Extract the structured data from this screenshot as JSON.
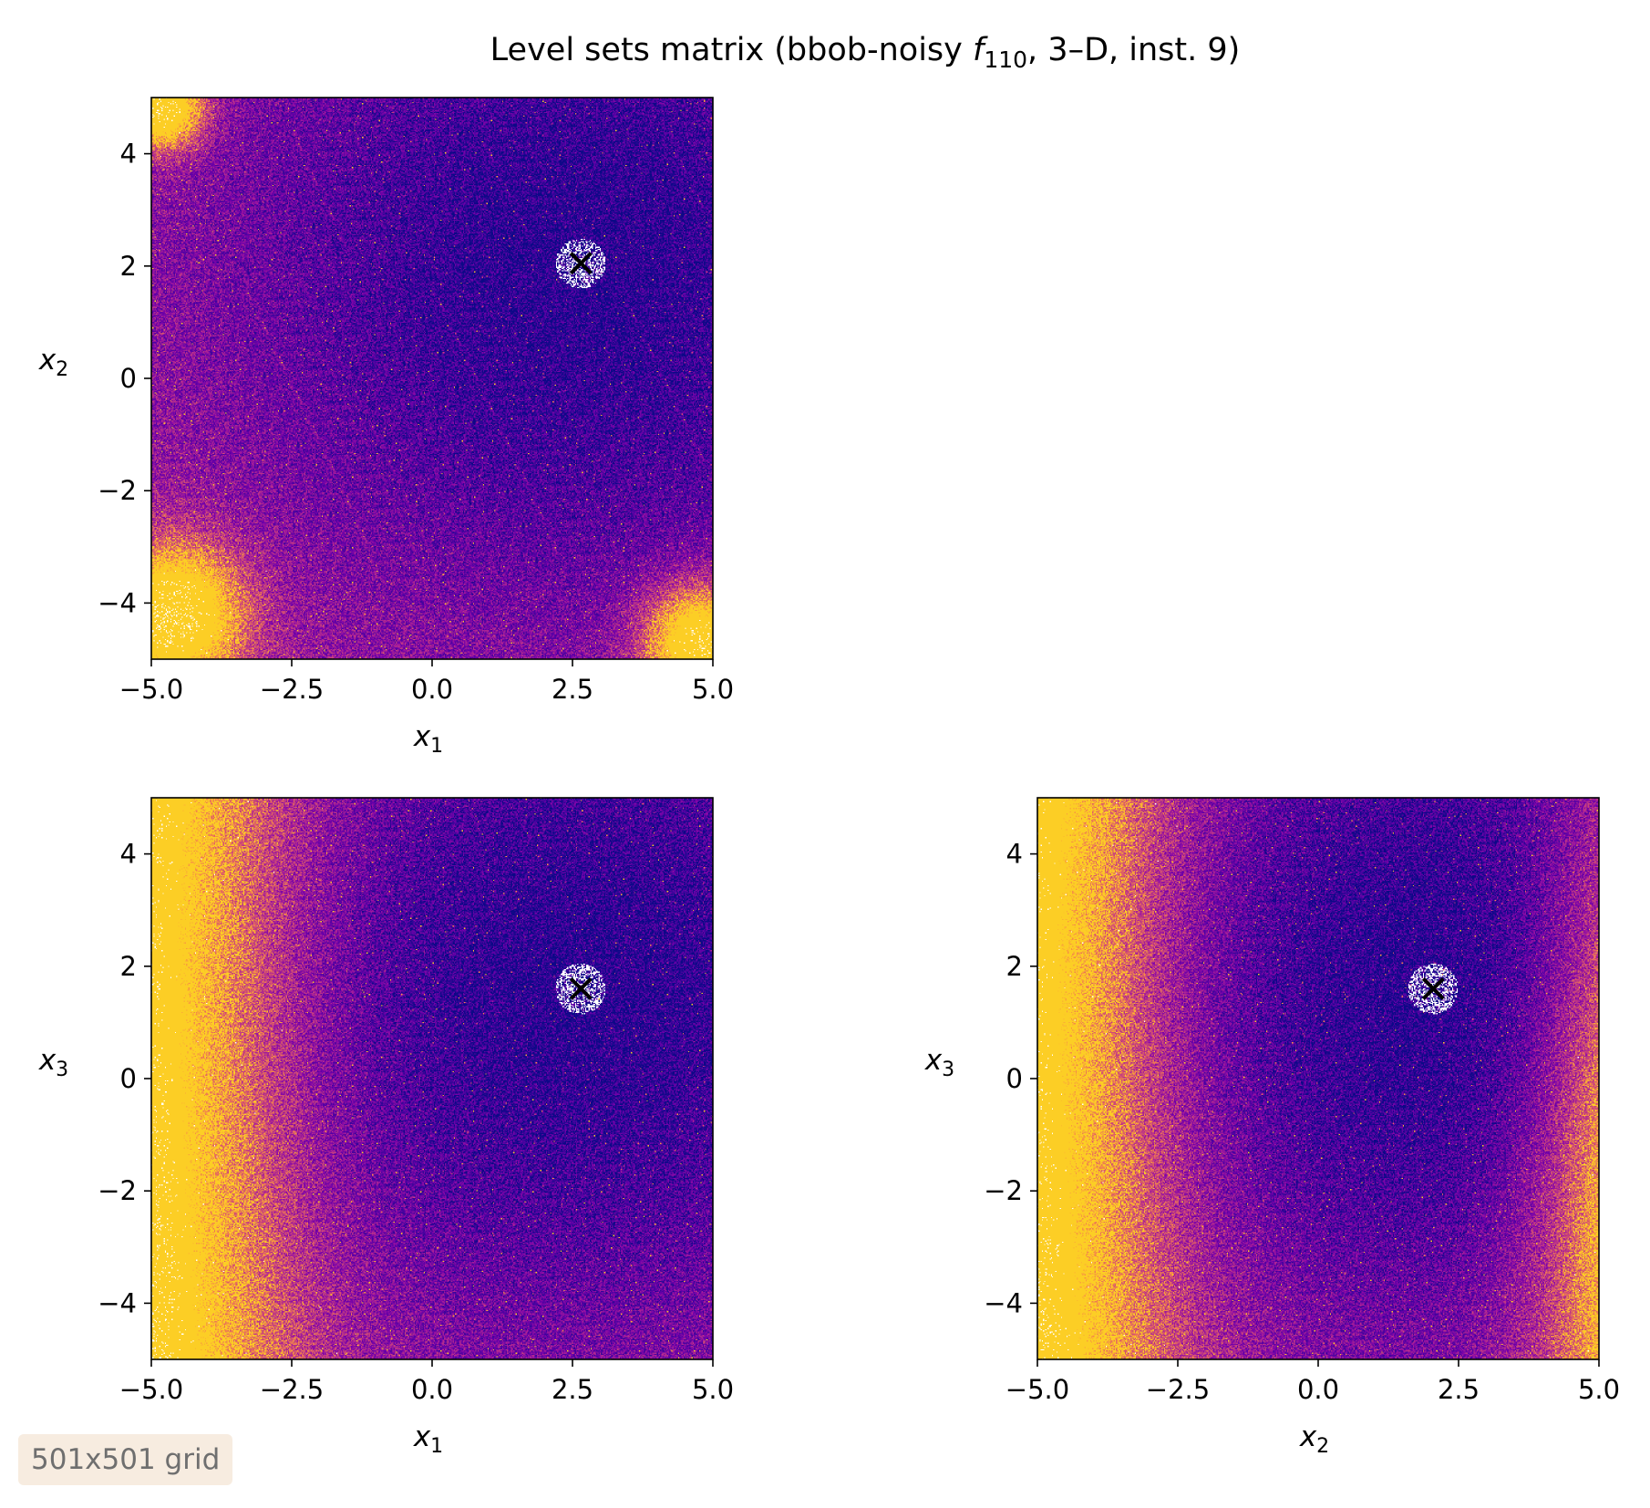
{
  "figure": {
    "title": "Level sets matrix (bbob-noisy f110, 3–D, inst. 9)",
    "title_parts": {
      "prefix": "Level sets matrix (bbob-noisy ",
      "func_letter": "f",
      "func_sub": "110",
      "suffix": ", 3–D, inst. 9)"
    },
    "badge": "501x501 grid",
    "colors": {
      "low": "#0d0887",
      "mid": "#7e03a8",
      "high": "#cc4778",
      "top": "#fcce25",
      "nan": "#ffffff",
      "marker": "#000000"
    }
  },
  "chart_data": [
    {
      "type": "heatmap",
      "name": "x1-x2",
      "x_var": "x",
      "x_sub": "1",
      "y_var": "x",
      "y_sub": "2",
      "xlim": [
        -5,
        5
      ],
      "ylim": [
        -5,
        5
      ],
      "xticks": [
        -5.0,
        -2.5,
        0.0,
        2.5,
        5.0
      ],
      "xtick_labels": [
        "−5.0",
        "−2.5",
        "0.0",
        "2.5",
        "5.0"
      ],
      "yticks": [
        -4,
        -2,
        0,
        2,
        4
      ],
      "ytick_labels": [
        "−4",
        "−2",
        "0",
        "2",
        "4"
      ],
      "optimum": [
        2.65,
        2.05
      ],
      "grid_resolution": [
        501,
        501
      ],
      "colormap": "plasma"
    },
    {
      "type": "heatmap",
      "name": "x1-x3",
      "x_var": "x",
      "x_sub": "1",
      "y_var": "x",
      "y_sub": "3",
      "xlim": [
        -5,
        5
      ],
      "ylim": [
        -5,
        5
      ],
      "xticks": [
        -5.0,
        -2.5,
        0.0,
        2.5,
        5.0
      ],
      "xtick_labels": [
        "−5.0",
        "−2.5",
        "0.0",
        "2.5",
        "5.0"
      ],
      "yticks": [
        -4,
        -2,
        0,
        2,
        4
      ],
      "ytick_labels": [
        "−4",
        "−2",
        "0",
        "2",
        "4"
      ],
      "optimum": [
        2.65,
        1.6
      ],
      "grid_resolution": [
        501,
        501
      ],
      "colormap": "plasma"
    },
    {
      "type": "heatmap",
      "name": "x2-x3",
      "x_var": "x",
      "x_sub": "2",
      "y_var": "x",
      "y_sub": "3",
      "xlim": [
        -5,
        5
      ],
      "ylim": [
        -5,
        5
      ],
      "xticks": [
        -5.0,
        -2.5,
        0.0,
        2.5,
        5.0
      ],
      "xtick_labels": [
        "−5.0",
        "−2.5",
        "0.0",
        "2.5",
        "5.0"
      ],
      "yticks": [
        -4,
        -2,
        0,
        2,
        4
      ],
      "ytick_labels": [
        "−4",
        "−2",
        "0",
        "2",
        "4"
      ],
      "optimum": [
        2.05,
        1.6
      ],
      "grid_resolution": [
        501,
        501
      ],
      "colormap": "plasma"
    }
  ]
}
